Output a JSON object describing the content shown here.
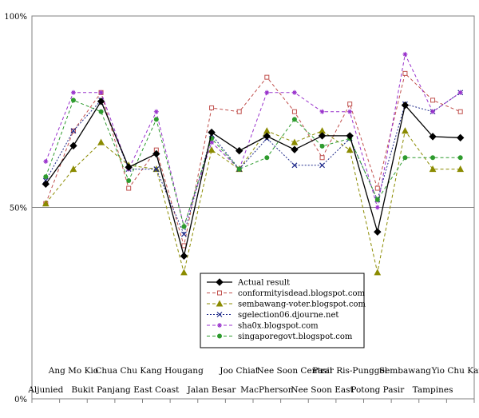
{
  "chart_data": {
    "type": "line",
    "title": "",
    "xlabel": "",
    "ylabel": "",
    "ylim": [
      0,
      100
    ],
    "y_tick_labels": [
      "0%",
      "50%",
      "100%"
    ],
    "y_tick_values": [
      0,
      50,
      100
    ],
    "grid": true,
    "legend_position": "bottom-center",
    "categories": [
      "Aljunied",
      "Ang Mo Kio",
      "Bukit Panjang",
      "Chua Chu Kang",
      "East Coast",
      "Hougang",
      "Jalan Besar",
      "Joo Chiat",
      "MacPherson",
      "Nee Soon Central",
      "Nee Soon East",
      "Pasir Ris-Punggol",
      "Potong Pasir",
      "Sembawang",
      "Tampines",
      "Yio Chu Kang"
    ],
    "series": [
      {
        "name": "Actual result",
        "color": "#000000",
        "dash": "",
        "marker": "diamond",
        "values": [
          56.1,
          66.1,
          77.7,
          60.5,
          64.0,
          37.3,
          69.6,
          64.8,
          68.6,
          65.1,
          68.7,
          68.7,
          43.6,
          76.7,
          68.5,
          68.2
        ]
      },
      {
        "name": "conformityisdead.blogspot.com",
        "color": "#c0504d",
        "dash": "4,3",
        "marker": "square",
        "values": [
          51,
          70,
          80,
          55,
          65,
          40,
          76,
          75,
          84,
          75,
          63,
          77,
          55,
          85,
          78,
          75
        ]
      },
      {
        "name": "sembawang-voter.blogspot.com",
        "color": "#8b8b00",
        "dash": "4,3",
        "marker": "triangle",
        "values": [
          51,
          60,
          67,
          61,
          60,
          33,
          65,
          60,
          70,
          67,
          70,
          65,
          33,
          70,
          60,
          60
        ]
      },
      {
        "name": "sgelection06.djourne.net",
        "color": "#1f2a8a",
        "dash": "2,2",
        "marker": "x",
        "values": [
          57,
          70,
          78,
          60,
          60,
          43,
          69,
          60,
          68,
          61,
          61,
          68,
          52,
          77,
          75,
          80
        ]
      },
      {
        "name": "sha0x.blogspot.com",
        "color": "#9932cc",
        "dash": "4,3",
        "marker": "star",
        "values": [
          62,
          80,
          80,
          60,
          75,
          45,
          67,
          60,
          80,
          80,
          75,
          75,
          50,
          90,
          75,
          80
        ]
      },
      {
        "name": "singaporegovt.blogspot.com",
        "color": "#2e9b2e",
        "dash": "4,3",
        "marker": "circle",
        "values": [
          58,
          78,
          75,
          57,
          73,
          45,
          68,
          60,
          63,
          73,
          66,
          68,
          52,
          63,
          63,
          63
        ]
      }
    ]
  }
}
